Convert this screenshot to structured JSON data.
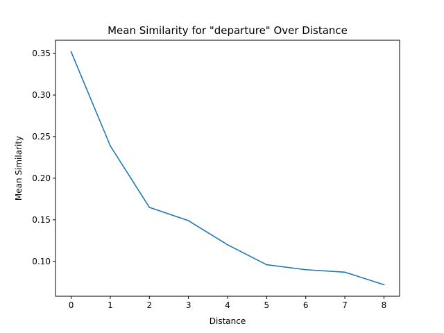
{
  "chart_data": {
    "type": "line",
    "title": "Mean Similarity for \"departure\" Over Distance",
    "xlabel": "Distance",
    "ylabel": "Mean Similarity",
    "x": [
      0,
      1,
      2,
      3,
      4,
      5,
      6,
      7,
      8
    ],
    "series": [
      {
        "values": [
          0.352,
          0.239,
          0.165,
          0.149,
          0.12,
          0.096,
          0.09,
          0.087,
          0.072
        ],
        "color": "#1f77b4"
      }
    ],
    "xlim": [
      -0.4,
      8.4
    ],
    "ylim": [
      0.0581,
      0.3659
    ],
    "xticks": [
      0,
      1,
      2,
      3,
      4,
      5,
      6,
      7,
      8
    ],
    "yticks": [
      0.1,
      0.15,
      0.2,
      0.25,
      0.3,
      0.35
    ],
    "xtick_labels": [
      "0",
      "1",
      "2",
      "3",
      "4",
      "5",
      "6",
      "7",
      "8"
    ],
    "ytick_labels": [
      "0.10",
      "0.15",
      "0.20",
      "0.25",
      "0.30",
      "0.35"
    ],
    "grid": false,
    "legend": "none"
  }
}
